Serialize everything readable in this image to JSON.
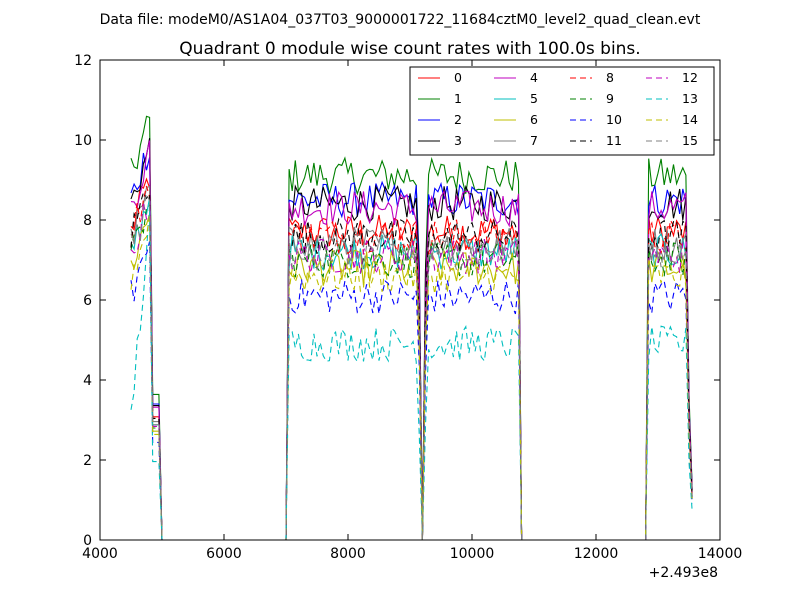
{
  "figure": {
    "suptitle": "Data file: modeM0/AS1A04_037T03_9000001722_11684cztM0_level2_quad_clean.evt",
    "title": "Quadrant 0 module wise count rates with 100.0s bins.",
    "x_offset_label": "+2.493e8"
  },
  "chart_data": {
    "type": "line",
    "title": "Quadrant 0 module wise count rates with 100.0s bins.",
    "xlabel": "",
    "ylabel": "",
    "xlim": [
      4000,
      14000
    ],
    "ylim": [
      0,
      12
    ],
    "x_offset": 249300000,
    "x_ticks": [
      4000,
      6000,
      8000,
      10000,
      12000,
      14000
    ],
    "x_tick_labels": [
      "4000",
      "6000",
      "8000",
      "10000",
      "12000",
      "14000"
    ],
    "y_ticks": [
      0,
      2,
      4,
      6,
      8,
      10,
      12
    ],
    "y_tick_labels": [
      "0",
      "2",
      "4",
      "6",
      "8",
      "10",
      "12"
    ],
    "grid": false,
    "legend_position": "top-right",
    "legend_columns": 4,
    "segments": [
      {
        "start": 4500,
        "end": 4800,
        "base": 8.6,
        "peak": 9.6
      },
      {
        "start": 7050,
        "end": 9150,
        "base": 7.3,
        "peak": 7.3
      },
      {
        "start": 9250,
        "end": 10750,
        "base": 7.5,
        "peak": 7.5
      },
      {
        "start": 12850,
        "end": 13450,
        "base": 7.5,
        "peak": 7.5
      }
    ],
    "series": [
      {
        "name": "0",
        "color": "#ff0000",
        "dash": "solid",
        "level": 7.7
      },
      {
        "name": "1",
        "color": "#008000",
        "dash": "solid",
        "level": 9.1
      },
      {
        "name": "2",
        "color": "#0000ff",
        "dash": "solid",
        "level": 8.5
      },
      {
        "name": "3",
        "color": "#000000",
        "dash": "solid",
        "level": 8.4
      },
      {
        "name": "4",
        "color": "#bf00bf",
        "dash": "solid",
        "level": 8.3
      },
      {
        "name": "5",
        "color": "#00bfbf",
        "dash": "solid",
        "level": 7.2
      },
      {
        "name": "6",
        "color": "#bfbf00",
        "dash": "solid",
        "level": 6.8
      },
      {
        "name": "7",
        "color": "#808080",
        "dash": "solid",
        "level": 7.4
      },
      {
        "name": "8",
        "color": "#ff0000",
        "dash": "dashed",
        "level": 7.6
      },
      {
        "name": "9",
        "color": "#008000",
        "dash": "dashed",
        "level": 7.0
      },
      {
        "name": "10",
        "color": "#0000ff",
        "dash": "dashed",
        "level": 6.1
      },
      {
        "name": "11",
        "color": "#000000",
        "dash": "dashed",
        "level": 7.6
      },
      {
        "name": "12",
        "color": "#bf00bf",
        "dash": "dashed",
        "level": 7.1
      },
      {
        "name": "13",
        "color": "#00bfbf",
        "dash": "dashed",
        "level": 4.9
      },
      {
        "name": "14",
        "color": "#bfbf00",
        "dash": "dashed",
        "level": 6.6
      },
      {
        "name": "15",
        "color": "#808080",
        "dash": "dashed",
        "level": 7.2
      }
    ]
  }
}
